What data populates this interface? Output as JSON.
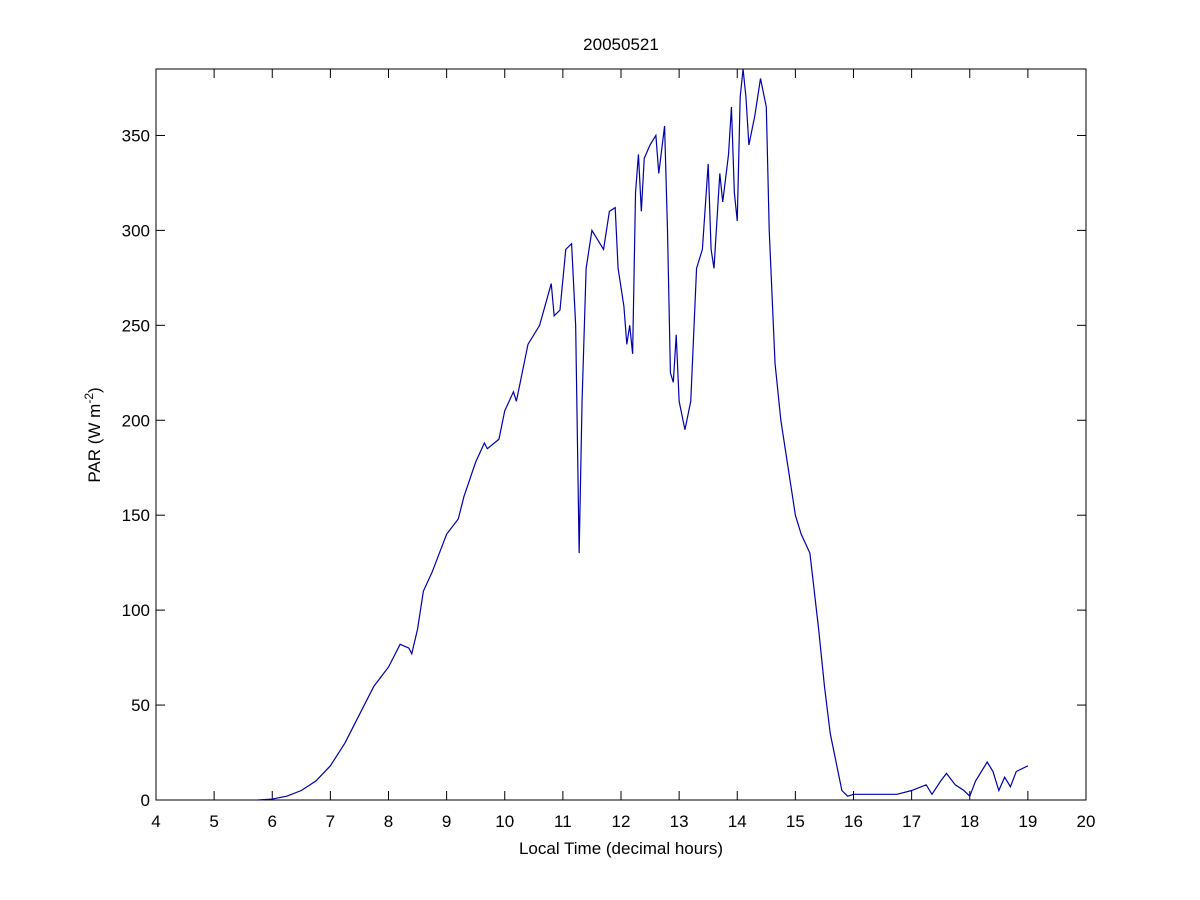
{
  "chart_data": {
    "type": "line",
    "title": "20050521",
    "xlabel": "Local Time (decimal hours)",
    "ylabel": [
      "PAR (W m",
      "-2",
      ")"
    ],
    "xlim": [
      4,
      20
    ],
    "xticks": [
      4,
      5,
      6,
      7,
      8,
      9,
      10,
      11,
      12,
      13,
      14,
      15,
      16,
      17,
      18,
      19,
      20
    ],
    "ylim": [
      0,
      385
    ],
    "yticks": [
      0,
      50,
      100,
      150,
      200,
      250,
      300,
      350
    ],
    "series": [
      {
        "color": "#0000a8",
        "x": [
          5.75,
          6.0,
          6.25,
          6.5,
          6.75,
          7.0,
          7.25,
          7.5,
          7.75,
          8.0,
          8.2,
          8.35,
          8.4,
          8.5,
          8.6,
          8.75,
          9.0,
          9.2,
          9.3,
          9.5,
          9.65,
          9.7,
          9.9,
          10.0,
          10.15,
          10.2,
          10.4,
          10.6,
          10.8,
          10.85,
          10.95,
          11.05,
          11.15,
          11.22,
          11.28,
          11.33,
          11.4,
          11.5,
          11.6,
          11.7,
          11.8,
          11.9,
          11.95,
          12.05,
          12.1,
          12.15,
          12.2,
          12.25,
          12.3,
          12.35,
          12.4,
          12.5,
          12.6,
          12.65,
          12.75,
          12.8,
          12.85,
          12.9,
          12.95,
          13.0,
          13.1,
          13.2,
          13.3,
          13.4,
          13.5,
          13.55,
          13.6,
          13.7,
          13.75,
          13.85,
          13.9,
          13.95,
          14.0,
          14.05,
          14.1,
          14.15,
          14.2,
          14.3,
          14.4,
          14.5,
          14.55,
          14.65,
          14.75,
          14.85,
          15.0,
          15.1,
          15.25,
          15.4,
          15.5,
          15.6,
          15.7,
          15.8,
          15.9,
          16.0,
          16.5,
          16.75,
          17.0,
          17.25,
          17.35,
          17.5,
          17.6,
          17.75,
          17.9,
          18.0,
          18.1,
          18.3,
          18.4,
          18.5,
          18.6,
          18.7,
          18.8,
          19.0
        ],
        "values": [
          0,
          0.5,
          2,
          5,
          10,
          18,
          30,
          45,
          60,
          70,
          82,
          80,
          77,
          90,
          110,
          120,
          140,
          148,
          160,
          178,
          188,
          185,
          190,
          205,
          215,
          210,
          240,
          250,
          272,
          255,
          258,
          290,
          293,
          250,
          130,
          210,
          280,
          300,
          295,
          290,
          310,
          312,
          280,
          260,
          240,
          250,
          235,
          320,
          340,
          310,
          338,
          345,
          350,
          330,
          355,
          300,
          225,
          220,
          245,
          210,
          195,
          210,
          280,
          290,
          335,
          290,
          280,
          330,
          315,
          340,
          365,
          320,
          305,
          370,
          385,
          370,
          345,
          360,
          380,
          365,
          300,
          230,
          200,
          180,
          150,
          140,
          130,
          90,
          60,
          35,
          20,
          5,
          2,
          3,
          3,
          3,
          5,
          8,
          3,
          10,
          14,
          8,
          5,
          2,
          10,
          20,
          15,
          5,
          12,
          7,
          15,
          18
        ]
      }
    ]
  }
}
